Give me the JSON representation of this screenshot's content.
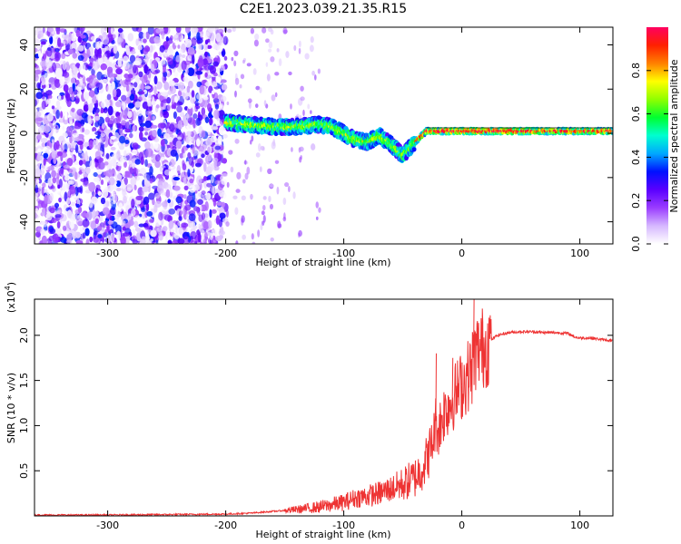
{
  "title": "C2E1.2023.039.21.35.R15",
  "chart_data": [
    {
      "type": "heatmap",
      "name": "spectrogram",
      "xlabel": "Height of straight line (km)",
      "ylabel": "Frequency (Hz)",
      "xlim": [
        -362,
        128
      ],
      "ylim": [
        -50,
        48
      ],
      "xticks": [
        -300,
        -200,
        -100,
        0,
        100
      ],
      "yticks": [
        -40,
        -20,
        0,
        20,
        40
      ],
      "colorbar": {
        "label": "Normalized spectral amplitude",
        "range": [
          0,
          1
        ],
        "ticks": [
          0.0,
          0.2,
          0.4,
          0.6,
          0.8
        ],
        "colors": [
          "#ffffff",
          "#d6b8ff",
          "#9a3cff",
          "#5a00ff",
          "#0010ff",
          "#00a8ff",
          "#00ffd0",
          "#00ff30",
          "#90ff00",
          "#ffff00",
          "#ff8000",
          "#ff2000",
          "#ff0060"
        ]
      },
      "regions": [
        {
          "x": [
            -362,
            -200
          ],
          "description_level": "noise",
          "amplitude": [
            0.0,
            0.35
          ]
        },
        {
          "x": [
            -200,
            -160
          ],
          "amplitude": [
            0.0,
            0.15
          ]
        },
        {
          "x": [
            -200,
            128
          ],
          "amplitude": [
            0.3,
            1.0
          ]
        }
      ],
      "signal_track": [
        {
          "x": -200,
          "y": 5
        },
        {
          "x": -180,
          "y": 4
        },
        {
          "x": -160,
          "y": 3
        },
        {
          "x": -140,
          "y": 3
        },
        {
          "x": -120,
          "y": 4
        },
        {
          "x": -110,
          "y": 3
        },
        {
          "x": -100,
          "y": 0
        },
        {
          "x": -90,
          "y": -3
        },
        {
          "x": -80,
          "y": -4
        },
        {
          "x": -70,
          "y": -1
        },
        {
          "x": -60,
          "y": -5
        },
        {
          "x": -50,
          "y": -10
        },
        {
          "x": -40,
          "y": -4
        },
        {
          "x": -30,
          "y": 1
        },
        {
          "x": -10,
          "y": 1
        },
        {
          "x": 0,
          "y": 1
        },
        {
          "x": 30,
          "y": 1
        },
        {
          "x": 60,
          "y": 1
        },
        {
          "x": 90,
          "y": 1
        },
        {
          "x": 128,
          "y": 1
        }
      ]
    },
    {
      "type": "line",
      "name": "snr",
      "xlabel": "Height of straight line (km)",
      "ylabel": "SNR (10 * v/v)",
      "multiplier": "(x10",
      "multiplier_exp": "4",
      "color": "#ee3333",
      "xlim": [
        -362,
        128
      ],
      "ylim": [
        0,
        2.4
      ],
      "xticks": [
        -300,
        -200,
        -100,
        0,
        100
      ],
      "yticks": [
        0.5,
        1.0,
        1.5,
        2.0
      ],
      "x": [
        -362,
        -300,
        -250,
        -200,
        -180,
        -160,
        -140,
        -120,
        -100,
        -90,
        -80,
        -70,
        -60,
        -50,
        -40,
        -35,
        -30,
        -25,
        -22,
        -20,
        -15,
        -10,
        -5,
        0,
        5,
        8,
        10,
        12,
        15,
        20,
        25,
        30,
        40,
        50,
        60,
        70,
        80,
        90,
        96,
        100,
        110,
        120,
        128
      ],
      "y": [
        0.01,
        0.01,
        0.015,
        0.02,
        0.03,
        0.05,
        0.07,
        0.1,
        0.15,
        0.2,
        0.22,
        0.25,
        0.3,
        0.35,
        0.42,
        0.5,
        0.62,
        0.8,
        1.05,
        0.95,
        1.15,
        1.25,
        1.35,
        1.45,
        1.55,
        1.6,
        1.75,
        1.8,
        1.85,
        1.88,
        1.95,
        2.0,
        2.03,
        2.04,
        2.04,
        2.03,
        2.03,
        2.02,
        1.98,
        1.97,
        1.97,
        1.95,
        1.94
      ],
      "peaks": [
        {
          "x": -22,
          "y": 1.8
        },
        {
          "x": -8,
          "y": 1.75
        },
        {
          "x": 10,
          "y": 2.4
        }
      ]
    }
  ]
}
